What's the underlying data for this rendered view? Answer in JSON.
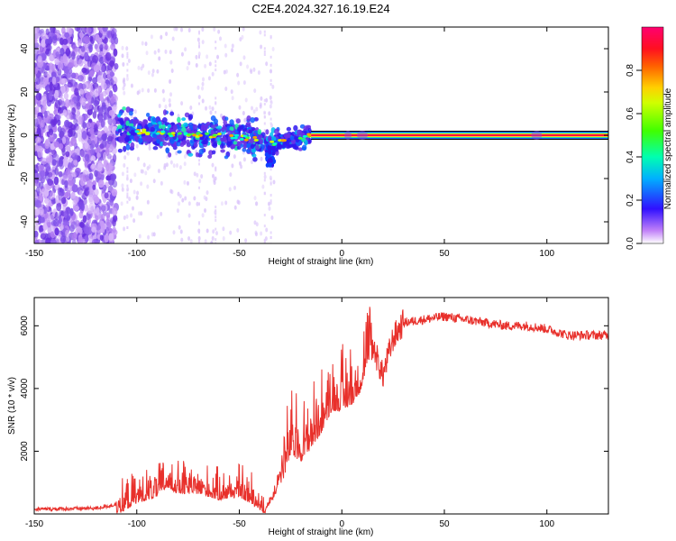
{
  "title": "C2E4.2024.327.16.19.E24",
  "colors": {
    "line": "#e8302b",
    "spectral_base": "#e060e8"
  },
  "chart_data": [
    {
      "type": "heatmap",
      "xlabel": "Height of straight line (km)",
      "ylabel": "Frequency (Hz)",
      "xlim": [
        -150,
        130
      ],
      "ylim": [
        -50,
        50
      ],
      "xticks": [
        -150,
        -100,
        -50,
        0,
        50,
        100
      ],
      "yticks": [
        -40,
        -20,
        0,
        20,
        40
      ],
      "colorbar": {
        "label": "Normalized spectral amplitude",
        "range": [
          0,
          1
        ],
        "ticks": [
          "0.0",
          "0.2",
          "0.4",
          "0.6",
          "0.8"
        ],
        "tick_values": [
          0.0,
          0.2,
          0.4,
          0.6,
          0.8
        ]
      },
      "signal_track": {
        "x": [
          -110,
          -100,
          -90,
          -80,
          -70,
          -60,
          -50,
          -40,
          -35,
          -30,
          -25,
          -20,
          -15,
          0,
          50,
          100,
          130
        ],
        "frequency": [
          3,
          2,
          1,
          0,
          0,
          0,
          -1,
          -2,
          -4,
          -3,
          -2,
          -1,
          0,
          0,
          0,
          0,
          0
        ]
      }
    },
    {
      "type": "line",
      "xlabel": "Height of straight line (km)",
      "ylabel": "SNR (10 * v/v)",
      "xlim": [
        -150,
        130
      ],
      "ylim": [
        0,
        6900
      ],
      "xticks": [
        -150,
        -100,
        -50,
        0,
        50,
        100
      ],
      "yticks": [
        2000,
        4000,
        6000
      ],
      "series": [
        {
          "x": [
            -150,
            -120,
            -110,
            -100,
            -90,
            -85,
            -80,
            -70,
            -60,
            -50,
            -45,
            -40,
            -37,
            -35,
            -32,
            -30,
            -25,
            -20,
            -15,
            -10,
            -5,
            0,
            5,
            10,
            12,
            15,
            20,
            25,
            30,
            40,
            50,
            60,
            70,
            80,
            90,
            100,
            110,
            120,
            130
          ],
          "values": [
            150,
            180,
            300,
            700,
            900,
            1200,
            1000,
            1000,
            800,
            900,
            700,
            500,
            300,
            500,
            800,
            1500,
            2600,
            2400,
            2800,
            3300,
            4000,
            4000,
            4200,
            4700,
            5500,
            5400,
            4400,
            5600,
            6100,
            6200,
            6300,
            6200,
            6100,
            6000,
            6000,
            5900,
            5700,
            5700,
            5700
          ]
        }
      ]
    }
  ]
}
